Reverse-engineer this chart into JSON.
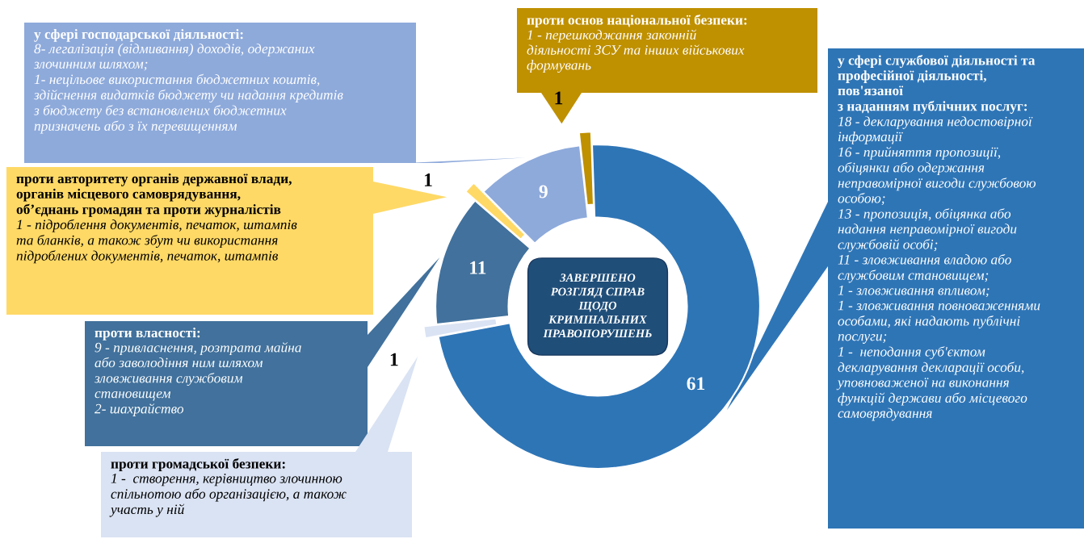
{
  "chart_data": {
    "type": "donut",
    "title": "ЗАВЕРШЕНО\nРОЗГЛЯД СПРАВ\nЩОДО\nКРИМІНАЛЬНИХ\nПРАВОПОРУШЕНЬ",
    "categories": [
      null,
      null,
      null,
      null,
      null,
      null
    ],
    "values": [
      61,
      1,
      11,
      1,
      9,
      1
    ],
    "colors": [
      "#2e75b6",
      "#dae3f3",
      "#41719c",
      "#ffd966",
      "#8eaadb",
      "#bf9000"
    ],
    "data_labels": true,
    "annotations": [
      "у сфері службової діяльності та\nпрофесійної діяльності,\nпов'язаної\nз наданням публічних послуг:",
      "18 - декларування недостовірної\nінформації\n16 - прийняття пропозиції,\nобіцянки або одержання\nнеправомірної вигоди службовою\nособою;\n13 - пропозиція, обіцянка або\nнадання неправомірної вигоди\nслужбовій особі;\n11 - зловживання владою або\nслужбовим становищем;\n1 - зловживання впливом;\n1 - зловживання повноваженнями\nособами, які надають публічні\nпослуги;\n1 -  неподання суб'єктом\nдекларування декларації особи,\nуповноваженої на виконання\nфункцій держави або місцевого\nсамоврядування",
      "проти громадської безпеки:",
      "1 -  створення, керівництво злочинною\nспільнотою або організацією, а також\nучасть у ній",
      "проти власності:",
      "9 - привласнення, розтрата майна\nабо заволодіння ним шляхом\nзловживання службовим\nстановищем\n2- шахрайство",
      "проти авторитету органів державної влади,\nорганів місцевого самоврядування,\nоб’єднань громадян та проти журналістів",
      "1 - підроблення документів, печаток, штампів\nта бланків, а також збут чи використання\nпідроблених документів, печаток, штампів",
      "у сфері господарської діяльності:",
      "8- легалізація (відмивання) доходів, одержаних\nзлочинним шляхом;\n1- нецільове використання бюджетних коштів,\nздійснення видатків бюджету чи надання кредитів\nз бюджету без встановлених бюджетних\nпризначень або з їх перевищенням",
      "проти основ національної безпеки:",
      "1 - перешкоджання законній\nдіяльності ЗСУ та інших військових\nформувань"
    ]
  }
}
